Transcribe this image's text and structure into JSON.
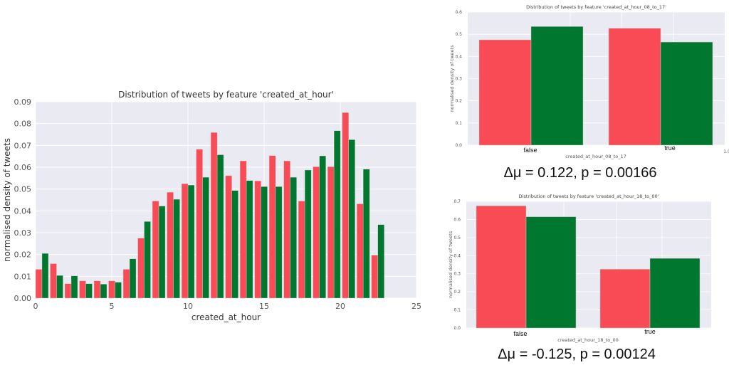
{
  "colors": {
    "red": "#f84b55",
    "green": "#00772e",
    "plot_bg": "#eaeaf2",
    "grid": "#ffffff",
    "tick_text": "#555555"
  },
  "chart_data": [
    {
      "type": "bar",
      "title": "Distribution of tweets by feature 'created_at_hour'",
      "xlabel": "created_at_hour",
      "ylabel": "normalised density of tweets",
      "xlim": [
        0,
        25
      ],
      "ylim": [
        0,
        0.09
      ],
      "xticks": [
        "0",
        "5",
        "10",
        "15",
        "20",
        "25"
      ],
      "yticks": [
        "0.00",
        "0.01",
        "0.02",
        "0.03",
        "0.04",
        "0.05",
        "0.06",
        "0.07",
        "0.08",
        "0.09"
      ],
      "grid": true,
      "categories": [
        0,
        1,
        2,
        3,
        4,
        5,
        6,
        7,
        8,
        9,
        10,
        11,
        12,
        13,
        14,
        15,
        16,
        17,
        18,
        19,
        20,
        21,
        22,
        23
      ],
      "series": [
        {
          "name": "red",
          "values": [
            0.0132,
            0.0158,
            0.0066,
            0.0079,
            0.0079,
            0.0079,
            0.0132,
            0.0275,
            0.0445,
            0.0485,
            0.0524,
            0.0682,
            0.0759,
            0.0561,
            0.0629,
            0.0537,
            0.0653,
            0.0629,
            0.0445,
            0.0602,
            0.0602,
            0.085,
            0.0432,
            0.0197
          ]
        },
        {
          "name": "green",
          "values": [
            0.0205,
            0.0104,
            0.0102,
            0.0066,
            0.0064,
            0.0073,
            0.018,
            0.0351,
            0.0422,
            0.0453,
            0.0518,
            0.0554,
            0.0657,
            0.0493,
            0.0539,
            0.0511,
            0.0511,
            0.0554,
            0.0587,
            0.0652,
            0.0767,
            0.0726,
            0.0591,
            0.0337
          ]
        }
      ]
    },
    {
      "type": "bar",
      "title": "Distribution of tweets by feature 'created_at_hour_08_to_17'",
      "xlabel": "created_at_hour_08_to_17",
      "ylabel": "normalised density of tweets",
      "ylim": [
        0,
        0.6
      ],
      "yticks": [
        "0.0",
        "0.1",
        "0.2",
        "0.3",
        "0.4",
        "0.5",
        "0.6"
      ],
      "extra_xtick": "1.0",
      "categories": [
        "false",
        "true"
      ],
      "series": [
        {
          "name": "red",
          "values": [
            0.475,
            0.527
          ]
        },
        {
          "name": "green",
          "values": [
            0.535,
            0.465
          ]
        }
      ],
      "annotation": "Δμ = 0.122, p = 0.00166"
    },
    {
      "type": "bar",
      "title": "Distribution of tweets by feature 'created_at_hour_18_to_00'",
      "xlabel": "created_at_hour_18_to_00",
      "ylabel": "normalised density of tweets",
      "ylim": [
        0,
        0.7
      ],
      "yticks": [
        "0.0",
        "0.1",
        "0.2",
        "0.3",
        "0.4",
        "0.5",
        "0.6",
        "0.7"
      ],
      "categories": [
        "false",
        "true"
      ],
      "series": [
        {
          "name": "red",
          "values": [
            0.675,
            0.325
          ]
        },
        {
          "name": "green",
          "values": [
            0.615,
            0.385
          ]
        }
      ],
      "annotation": "Δμ = -0.125, p = 0.00124"
    }
  ]
}
